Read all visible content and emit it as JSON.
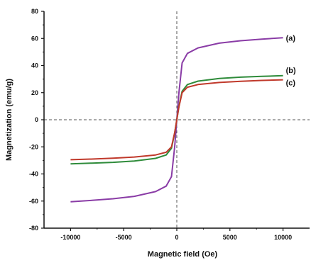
{
  "chart_data": {
    "type": "line",
    "title": "",
    "xlabel": "Magnetic field (Oe)",
    "ylabel": "Magnetization (emu/g)",
    "xlim": [
      -12500,
      12500
    ],
    "ylim": [
      -80,
      80
    ],
    "xticks": [
      -10000,
      -5000,
      0,
      5000,
      10000
    ],
    "yticks": [
      -80,
      -60,
      -40,
      -20,
      0,
      20,
      40,
      60,
      80
    ],
    "grid": false,
    "reference_lines": [
      "x=0 dashed",
      "y=0 dashed"
    ],
    "series": [
      {
        "name": "(a)",
        "color": "#8a3ca6",
        "x": [
          -10000,
          -8000,
          -6000,
          -4000,
          -2000,
          -1000,
          -500,
          -200,
          0,
          200,
          500,
          1000,
          2000,
          4000,
          6000,
          8000,
          10000
        ],
        "y": [
          -60.5,
          -59.5,
          -58.3,
          -56.5,
          -53.0,
          -49.0,
          -42.0,
          -20.0,
          0.0,
          20.0,
          42.0,
          49.0,
          53.0,
          56.5,
          58.3,
          59.5,
          60.5
        ]
      },
      {
        "name": "(b)",
        "color": "#2e8b3a",
        "x": [
          -10000,
          -8000,
          -6000,
          -4000,
          -2000,
          -1000,
          -500,
          -200,
          0,
          200,
          500,
          1000,
          2000,
          4000,
          6000,
          8000,
          10000
        ],
        "y": [
          -32.5,
          -32.0,
          -31.4,
          -30.5,
          -28.5,
          -26.0,
          -21.0,
          -10.0,
          0.0,
          10.0,
          21.0,
          26.0,
          28.5,
          30.5,
          31.4,
          32.0,
          32.5
        ]
      },
      {
        "name": "(c)",
        "color": "#c0392b",
        "x": [
          -10000,
          -8000,
          -6000,
          -4000,
          -2000,
          -1000,
          -500,
          -200,
          0,
          200,
          500,
          1000,
          2000,
          4000,
          6000,
          8000,
          10000
        ],
        "y": [
          -29.5,
          -29.0,
          -28.4,
          -27.5,
          -26.0,
          -24.0,
          -20.0,
          -9.5,
          0.0,
          9.5,
          20.0,
          24.0,
          26.0,
          27.5,
          28.4,
          29.0,
          29.5
        ]
      }
    ]
  }
}
